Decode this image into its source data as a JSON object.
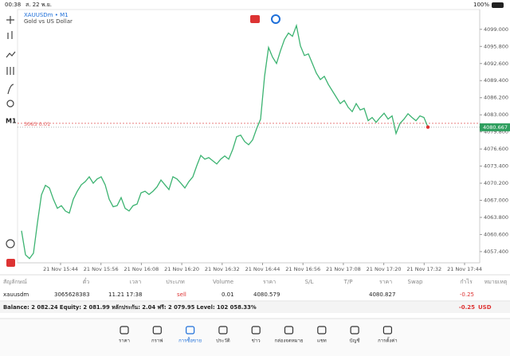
{
  "status_bar": {
    "time": "00:38",
    "date": "ส. 22 พ.ย.",
    "battery": "100%"
  },
  "chart": {
    "type": "line",
    "symbol": "XAUUSDm • M1",
    "description": "Gold vs US Dollar",
    "timeframe": "M1",
    "color": "#3cb371",
    "values": [
      4061.3,
      4056.8,
      4056.1,
      4057.1,
      4062.8,
      4068.0,
      4069.8,
      4069.3,
      4067.2,
      4065.5,
      4066.0,
      4065.0,
      4064.6,
      4067.2,
      4068.7,
      4069.9,
      4070.5,
      4071.4,
      4070.2,
      4071.0,
      4071.4,
      4069.9,
      4067.2,
      4065.8,
      4066.0,
      4067.5,
      4065.5,
      4065.0,
      4066.0,
      4066.3,
      4068.4,
      4068.7,
      4068.1,
      4068.7,
      4069.5,
      4070.8,
      4069.9,
      4069.0,
      4071.4,
      4071.0,
      4070.2,
      4069.3,
      4070.5,
      4071.4,
      4073.5,
      4075.4,
      4074.7,
      4075.0,
      4074.4,
      4073.8,
      4074.7,
      4075.3,
      4074.7,
      4076.5,
      4078.9,
      4079.2,
      4078.0,
      4077.4,
      4078.3,
      4080.4,
      4082.2,
      4090.2,
      4095.6,
      4093.8,
      4092.6,
      4095.0,
      4097.1,
      4098.3,
      4097.7,
      4099.7,
      4095.9,
      4094.1,
      4094.4,
      4092.6,
      4090.8,
      4089.6,
      4090.2,
      4088.7,
      4087.5,
      4086.3,
      4085.1,
      4085.7,
      4084.4,
      4083.6,
      4085.1,
      4083.9,
      4084.2,
      4081.9,
      4082.5,
      4081.6,
      4082.5,
      4083.3,
      4082.2,
      4082.8,
      4079.5,
      4081.4,
      4082.2,
      4083.2,
      4082.5,
      4081.9,
      4082.8,
      4082.5,
      4080.7
    ],
    "ylim": [
      4055.3,
      4102.7
    ],
    "yticks": [
      {
        "value": 4099,
        "label": "4099.000"
      },
      {
        "value": 4095.8,
        "label": "4095.800"
      },
      {
        "value": 4092.6,
        "label": "4092.600"
      },
      {
        "value": 4089.4,
        "label": "4089.400"
      },
      {
        "value": 4086.2,
        "label": "4086.200"
      },
      {
        "value": 4083,
        "label": "4083.000"
      },
      {
        "value": 4079.8,
        "label": "4079.800"
      },
      {
        "value": 4076.6,
        "label": "4076.600"
      },
      {
        "value": 4073.4,
        "label": "4073.400"
      },
      {
        "value": 4070.2,
        "label": "4070.200"
      },
      {
        "value": 4067,
        "label": "4067.000"
      },
      {
        "value": 4063.8,
        "label": "4063.800"
      },
      {
        "value": 4060.6,
        "label": "4060.600"
      },
      {
        "value": 4057.4,
        "label": "4057.400"
      }
    ],
    "xticks": [
      "21 Nov 15:44",
      "21 Nov 15:56",
      "21 Nov 16:08",
      "21 Nov 16:20",
      "21 Nov 16:32",
      "21 Nov 16:44",
      "21 Nov 16:56",
      "21 Nov 17:08",
      "21 Nov 17:20",
      "21 Nov 17:32",
      "21 Nov 17:44"
    ],
    "current_price": {
      "value": 4080.667,
      "label": "4080.667"
    },
    "order_line": {
      "value": 4081.4,
      "label": "3063 0.01"
    }
  },
  "table": {
    "headers": [
      "สัญลักษณ์",
      "ตั๋ว",
      "เวลา",
      "ประเภท",
      "Volume",
      "ราคา",
      "S/L",
      "T/P",
      "ราคา",
      "Swap",
      "กำไร",
      "หมายเหตุ"
    ],
    "row": {
      "symbol": "xauusdm",
      "ticket": "3065628383",
      "time": "11.21 17:38",
      "type": "sell",
      "volume": "0.01",
      "open_price": "4080.579",
      "price": "4080.827",
      "profit": "-0.25"
    }
  },
  "balance": {
    "text": "Balance: 2 082.24 Equity: 2 081.99 หลักประกัน: 2.04 ฟรี: 2 079.95 Level: 102 058.33%",
    "profit": "-0.25",
    "currency": "USD"
  },
  "nav": {
    "active_tab": 2,
    "tabs": [
      "ราคา",
      "กราฟ",
      "การซื้อขาย",
      "ประวัติ",
      "ข่าว",
      "กล่องจดหมาย",
      "แชท",
      "บัญชี",
      "การตั้งค่า"
    ]
  }
}
